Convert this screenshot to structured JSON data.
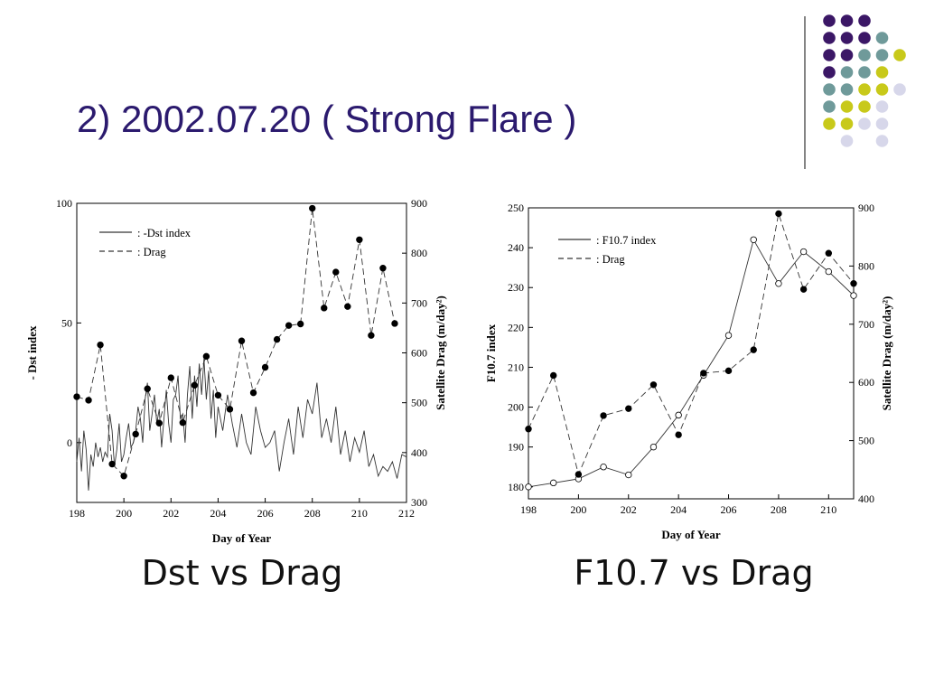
{
  "slide": {
    "title": "2) 2002.07.20 ( Strong Flare )",
    "captions": [
      "Dst vs Drag",
      "F10.7 vs Drag"
    ],
    "colors": {
      "title": "#2b1a6e",
      "purple": "#3b1766",
      "teal": "#6f9a9a",
      "yellow": "#c8c91a",
      "lavender": "#d7d7ea"
    }
  },
  "chart_data": [
    {
      "type": "line",
      "xlabel": "Day of Year",
      "ylabel": "- Dst index",
      "y2label": "Satellite Drag (m/day²)",
      "xlim": [
        198,
        212
      ],
      "ylim": [
        -25,
        100
      ],
      "y2lim": [
        300,
        900
      ],
      "xticks": [
        "198",
        "200",
        "202",
        "204",
        "206",
        "208",
        "210",
        "212"
      ],
      "yticks": [
        "0",
        "50",
        "100"
      ],
      "y2ticks": [
        "300",
        "400",
        "500",
        "600",
        "700",
        "800",
        "900"
      ],
      "legend": [
        "-Dst index",
        "Drag"
      ],
      "series": [
        {
          "name": "-Dst index",
          "axis": "left",
          "style": "solid",
          "x": [
            198.0,
            198.1,
            198.2,
            198.3,
            198.4,
            198.5,
            198.6,
            198.7,
            198.8,
            198.9,
            199.0,
            199.1,
            199.2,
            199.3,
            199.4,
            199.5,
            199.6,
            199.7,
            199.8,
            199.9,
            200.0,
            200.1,
            200.2,
            200.3,
            200.4,
            200.5,
            200.6,
            200.7,
            200.8,
            200.9,
            201.0,
            201.1,
            201.2,
            201.3,
            201.4,
            201.5,
            201.6,
            201.7,
            201.8,
            201.9,
            202.0,
            202.1,
            202.2,
            202.3,
            202.4,
            202.5,
            202.6,
            202.7,
            202.8,
            202.9,
            203.0,
            203.1,
            203.2,
            203.3,
            203.4,
            203.5,
            203.6,
            203.7,
            203.8,
            203.9,
            204.0,
            204.2,
            204.4,
            204.6,
            204.8,
            205.0,
            205.2,
            205.4,
            205.6,
            205.8,
            206.0,
            206.2,
            206.4,
            206.6,
            206.8,
            207.0,
            207.2,
            207.4,
            207.6,
            207.8,
            208.0,
            208.2,
            208.4,
            208.6,
            208.8,
            209.0,
            209.2,
            209.4,
            209.6,
            209.8,
            210.0,
            210.2,
            210.4,
            210.6,
            210.8,
            211.0,
            211.2,
            211.4,
            211.6,
            211.8,
            212.0
          ],
          "values": [
            -8,
            2,
            -12,
            5,
            -3,
            -20,
            -5,
            -10,
            0,
            -6,
            -2,
            -8,
            -4,
            -6,
            12,
            5,
            -10,
            -3,
            8,
            -8,
            -5,
            2,
            8,
            -2,
            0,
            5,
            15,
            10,
            0,
            18,
            25,
            5,
            12,
            20,
            8,
            14,
            -2,
            10,
            22,
            8,
            0,
            18,
            20,
            28,
            10,
            12,
            0,
            20,
            32,
            10,
            28,
            15,
            33,
            20,
            35,
            18,
            30,
            10,
            22,
            2,
            15,
            5,
            20,
            8,
            -2,
            12,
            0,
            -5,
            15,
            5,
            -2,
            0,
            5,
            -12,
            0,
            10,
            -5,
            15,
            2,
            18,
            12,
            25,
            2,
            10,
            0,
            15,
            -5,
            5,
            -8,
            2,
            -4,
            5,
            -10,
            -5,
            -14,
            -10,
            -12,
            -8,
            -15,
            -5,
            -6
          ]
        },
        {
          "name": "Drag",
          "axis": "right",
          "style": "dashed",
          "x": [
            198.0,
            198.5,
            199.0,
            199.5,
            200.0,
            200.5,
            201.0,
            201.5,
            202.0,
            202.5,
            203.0,
            203.5,
            204.0,
            204.5,
            205.0,
            205.5,
            206.0,
            206.5,
            207.0,
            207.5,
            208.0,
            208.5,
            209.0,
            209.5,
            210.0,
            210.5,
            211.0,
            211.5
          ],
          "values": [
            512,
            505,
            616,
            377,
            353,
            437,
            528,
            459,
            550,
            460,
            535,
            593,
            515,
            487,
            624,
            520,
            571,
            627,
            655,
            658,
            890,
            690,
            762,
            693,
            827,
            635,
            770,
            659
          ]
        }
      ]
    },
    {
      "type": "line",
      "xlabel": "Day of Year",
      "ylabel": "F10.7 index",
      "y2label": "Satellite Drag (m/day²)",
      "xlim": [
        198,
        211
      ],
      "ylim": [
        177,
        250
      ],
      "y2lim": [
        400,
        900
      ],
      "xticks": [
        "198",
        "200",
        "202",
        "204",
        "206",
        "208",
        "210"
      ],
      "yticks": [
        "180",
        "190",
        "200",
        "210",
        "220",
        "230",
        "240",
        "250"
      ],
      "y2ticks": [
        "400",
        "500",
        "600",
        "700",
        "800",
        "900"
      ],
      "legend": [
        "F10.7 index",
        "Drag"
      ],
      "series": [
        {
          "name": "F10.7 index",
          "axis": "left",
          "style": "solid",
          "x": [
            198,
            199,
            200,
            201,
            202,
            203,
            204,
            205,
            206,
            207,
            208,
            209,
            210,
            211
          ],
          "values": [
            180,
            181,
            182,
            185,
            183,
            190,
            198,
            208,
            218,
            242,
            231,
            239,
            234,
            228
          ]
        },
        {
          "name": "Drag",
          "axis": "right",
          "style": "dashed",
          "x": [
            198,
            199,
            200,
            201,
            202,
            203,
            204,
            205,
            206,
            207,
            208,
            209,
            210,
            211
          ],
          "values": [
            520,
            612,
            442,
            543,
            555,
            596,
            510,
            616,
            620,
            656,
            890,
            760,
            822,
            770
          ]
        }
      ]
    }
  ]
}
